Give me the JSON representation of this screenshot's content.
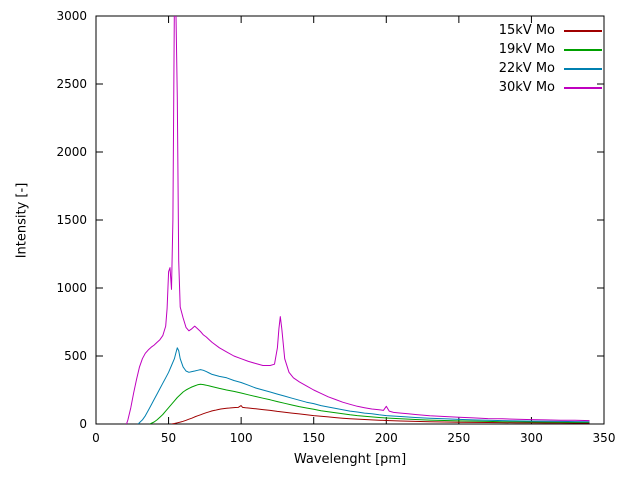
{
  "chart_data": {
    "type": "line",
    "title": "",
    "xlabel": "Wavelenght [pm]",
    "ylabel": "Intensity [-]",
    "xlim": [
      0,
      350
    ],
    "ylim": [
      0,
      3000
    ],
    "xticks": [
      0,
      50,
      100,
      150,
      200,
      250,
      300,
      350
    ],
    "yticks": [
      0,
      500,
      1000,
      1500,
      2000,
      2500,
      3000
    ],
    "grid": false,
    "legend_position": "top-right",
    "series": [
      {
        "name": "15kV Mo",
        "color": "#a00000",
        "points": [
          [
            52,
            0
          ],
          [
            54,
            4
          ],
          [
            56,
            9
          ],
          [
            58,
            14
          ],
          [
            60,
            20
          ],
          [
            62,
            27
          ],
          [
            64,
            35
          ],
          [
            66,
            43
          ],
          [
            68,
            52
          ],
          [
            70,
            60
          ],
          [
            72,
            68
          ],
          [
            74,
            76
          ],
          [
            76,
            83
          ],
          [
            78,
            90
          ],
          [
            80,
            96
          ],
          [
            82,
            101
          ],
          [
            84,
            106
          ],
          [
            86,
            110
          ],
          [
            88,
            113
          ],
          [
            90,
            116
          ],
          [
            92,
            118
          ],
          [
            94,
            120
          ],
          [
            96,
            121
          ],
          [
            98,
            122
          ],
          [
            100,
            135
          ],
          [
            101,
            122
          ],
          [
            103,
            119
          ],
          [
            105,
            118
          ],
          [
            110,
            112
          ],
          [
            115,
            106
          ],
          [
            120,
            100
          ],
          [
            125,
            93
          ],
          [
            130,
            87
          ],
          [
            135,
            80
          ],
          [
            140,
            74
          ],
          [
            145,
            68
          ],
          [
            150,
            62
          ],
          [
            155,
            57
          ],
          [
            160,
            52
          ],
          [
            165,
            47
          ],
          [
            170,
            43
          ],
          [
            175,
            39
          ],
          [
            180,
            36
          ],
          [
            185,
            33
          ],
          [
            190,
            30
          ],
          [
            195,
            28
          ],
          [
            200,
            26
          ],
          [
            210,
            22
          ],
          [
            220,
            19
          ],
          [
            230,
            17
          ],
          [
            240,
            15
          ],
          [
            250,
            13
          ],
          [
            260,
            12
          ],
          [
            270,
            11
          ],
          [
            280,
            10
          ],
          [
            290,
            9
          ],
          [
            300,
            9
          ],
          [
            310,
            8
          ],
          [
            320,
            8
          ],
          [
            330,
            7
          ],
          [
            340,
            7
          ]
        ]
      },
      {
        "name": "19kV Mo",
        "color": "#00a000",
        "points": [
          [
            37,
            0
          ],
          [
            38,
            5
          ],
          [
            40,
            15
          ],
          [
            42,
            30
          ],
          [
            44,
            50
          ],
          [
            46,
            70
          ],
          [
            48,
            95
          ],
          [
            50,
            120
          ],
          [
            52,
            145
          ],
          [
            54,
            170
          ],
          [
            56,
            195
          ],
          [
            58,
            215
          ],
          [
            60,
            235
          ],
          [
            62,
            250
          ],
          [
            64,
            262
          ],
          [
            66,
            272
          ],
          [
            68,
            280
          ],
          [
            70,
            288
          ],
          [
            72,
            292
          ],
          [
            74,
            290
          ],
          [
            76,
            285
          ],
          [
            78,
            280
          ],
          [
            80,
            275
          ],
          [
            85,
            262
          ],
          [
            90,
            250
          ],
          [
            95,
            240
          ],
          [
            100,
            228
          ],
          [
            105,
            215
          ],
          [
            110,
            202
          ],
          [
            115,
            190
          ],
          [
            120,
            178
          ],
          [
            125,
            165
          ],
          [
            130,
            152
          ],
          [
            135,
            140
          ],
          [
            140,
            128
          ],
          [
            145,
            118
          ],
          [
            150,
            108
          ],
          [
            155,
            98
          ],
          [
            160,
            90
          ],
          [
            165,
            82
          ],
          [
            170,
            75
          ],
          [
            175,
            68
          ],
          [
            180,
            62
          ],
          [
            185,
            57
          ],
          [
            190,
            52
          ],
          [
            195,
            48
          ],
          [
            200,
            44
          ],
          [
            210,
            38
          ],
          [
            220,
            33
          ],
          [
            230,
            29
          ],
          [
            240,
            26
          ],
          [
            250,
            23
          ],
          [
            260,
            21
          ],
          [
            270,
            19
          ],
          [
            280,
            17
          ],
          [
            290,
            16
          ],
          [
            300,
            15
          ],
          [
            310,
            14
          ],
          [
            320,
            13
          ],
          [
            330,
            12
          ],
          [
            340,
            12
          ]
        ]
      },
      {
        "name": "22kV Mo",
        "color": "#0080b0",
        "points": [
          [
            29,
            0
          ],
          [
            30,
            10
          ],
          [
            32,
            30
          ],
          [
            34,
            60
          ],
          [
            36,
            100
          ],
          [
            38,
            140
          ],
          [
            40,
            180
          ],
          [
            42,
            220
          ],
          [
            44,
            260
          ],
          [
            46,
            300
          ],
          [
            48,
            340
          ],
          [
            50,
            380
          ],
          [
            52,
            430
          ],
          [
            54,
            480
          ],
          [
            55,
            520
          ],
          [
            56,
            560
          ],
          [
            57,
            540
          ],
          [
            58,
            480
          ],
          [
            60,
            420
          ],
          [
            62,
            390
          ],
          [
            64,
            380
          ],
          [
            66,
            385
          ],
          [
            68,
            390
          ],
          [
            70,
            395
          ],
          [
            72,
            400
          ],
          [
            74,
            395
          ],
          [
            76,
            385
          ],
          [
            78,
            375
          ],
          [
            80,
            365
          ],
          [
            85,
            350
          ],
          [
            90,
            340
          ],
          [
            95,
            320
          ],
          [
            100,
            305
          ],
          [
            105,
            285
          ],
          [
            110,
            265
          ],
          [
            115,
            250
          ],
          [
            120,
            235
          ],
          [
            125,
            220
          ],
          [
            130,
            205
          ],
          [
            135,
            190
          ],
          [
            140,
            175
          ],
          [
            145,
            160
          ],
          [
            150,
            150
          ],
          [
            155,
            135
          ],
          [
            160,
            125
          ],
          [
            165,
            115
          ],
          [
            170,
            105
          ],
          [
            175,
            95
          ],
          [
            180,
            88
          ],
          [
            185,
            80
          ],
          [
            190,
            75
          ],
          [
            195,
            68
          ],
          [
            200,
            62
          ],
          [
            210,
            55
          ],
          [
            220,
            48
          ],
          [
            230,
            42
          ],
          [
            240,
            38
          ],
          [
            250,
            34
          ],
          [
            260,
            30
          ],
          [
            270,
            27
          ],
          [
            280,
            25
          ],
          [
            290,
            23
          ],
          [
            300,
            21
          ],
          [
            310,
            20
          ],
          [
            320,
            19
          ],
          [
            330,
            18
          ],
          [
            340,
            17
          ]
        ]
      },
      {
        "name": "30kV Mo",
        "color": "#bf00bf",
        "points": [
          [
            21,
            0
          ],
          [
            22,
            30
          ],
          [
            24,
            120
          ],
          [
            26,
            230
          ],
          [
            28,
            330
          ],
          [
            30,
            420
          ],
          [
            32,
            480
          ],
          [
            34,
            520
          ],
          [
            36,
            545
          ],
          [
            38,
            565
          ],
          [
            40,
            580
          ],
          [
            42,
            600
          ],
          [
            44,
            620
          ],
          [
            46,
            650
          ],
          [
            48,
            720
          ],
          [
            49,
            850
          ],
          [
            50,
            1120
          ],
          [
            51,
            1150
          ],
          [
            52,
            990
          ],
          [
            53,
            1500
          ],
          [
            54,
            3100
          ],
          [
            55,
            3100
          ],
          [
            56,
            2400
          ],
          [
            57,
            1200
          ],
          [
            58,
            860
          ],
          [
            60,
            780
          ],
          [
            62,
            710
          ],
          [
            64,
            685
          ],
          [
            66,
            700
          ],
          [
            68,
            720
          ],
          [
            70,
            700
          ],
          [
            72,
            680
          ],
          [
            74,
            655
          ],
          [
            76,
            640
          ],
          [
            78,
            620
          ],
          [
            80,
            600
          ],
          [
            85,
            560
          ],
          [
            90,
            530
          ],
          [
            95,
            500
          ],
          [
            100,
            480
          ],
          [
            105,
            460
          ],
          [
            110,
            445
          ],
          [
            115,
            430
          ],
          [
            120,
            430
          ],
          [
            123,
            440
          ],
          [
            125,
            560
          ],
          [
            126,
            700
          ],
          [
            127,
            790
          ],
          [
            128,
            700
          ],
          [
            130,
            480
          ],
          [
            133,
            380
          ],
          [
            136,
            340
          ],
          [
            140,
            310
          ],
          [
            145,
            280
          ],
          [
            150,
            250
          ],
          [
            155,
            225
          ],
          [
            160,
            200
          ],
          [
            165,
            180
          ],
          [
            170,
            160
          ],
          [
            175,
            145
          ],
          [
            180,
            130
          ],
          [
            185,
            120
          ],
          [
            190,
            110
          ],
          [
            195,
            105
          ],
          [
            198,
            100
          ],
          [
            200,
            130
          ],
          [
            202,
            95
          ],
          [
            205,
            85
          ],
          [
            210,
            80
          ],
          [
            215,
            75
          ],
          [
            220,
            70
          ],
          [
            230,
            60
          ],
          [
            240,
            55
          ],
          [
            250,
            50
          ],
          [
            260,
            45
          ],
          [
            270,
            40
          ],
          [
            280,
            38
          ],
          [
            290,
            35
          ],
          [
            300,
            32
          ],
          [
            310,
            30
          ],
          [
            320,
            28
          ],
          [
            330,
            27
          ],
          [
            340,
            25
          ]
        ]
      }
    ]
  }
}
